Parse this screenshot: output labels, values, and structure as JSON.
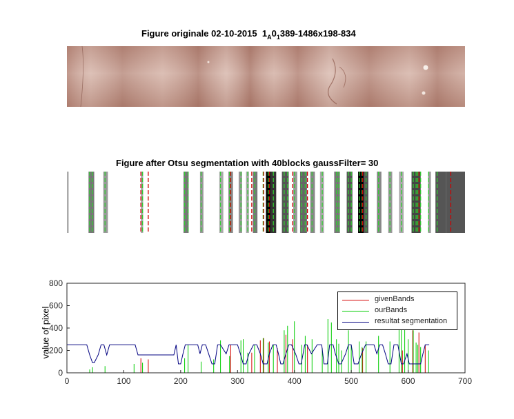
{
  "figure1": {
    "title_main": "Figure originale 02-10-2015",
    "title_sub_parts": [
      "1",
      "A",
      "0",
      "1"
    ],
    "title_tail": "389-1486x198-834",
    "texture_colors": [
      "#a9776b",
      "#d8b7ac",
      "#9a5f52",
      "#e3c8bf"
    ]
  },
  "figure2": {
    "title": "Figure after Otsu segmentation with 40blocks gaussFilter= 30",
    "xlim": [
      0,
      700
    ],
    "gray_regions": [
      {
        "from": 0,
        "to": 3,
        "shade": "#aaaaaa"
      },
      {
        "from": 38,
        "to": 48,
        "shade": "#777777"
      },
      {
        "from": 64,
        "to": 72,
        "shade": "#999999"
      },
      {
        "from": 130,
        "to": 134,
        "shade": "#aaaaaa"
      },
      {
        "from": 205,
        "to": 214,
        "shade": "#777777"
      },
      {
        "from": 234,
        "to": 240,
        "shade": "#999999"
      },
      {
        "from": 268,
        "to": 275,
        "shade": "#aaaaaa"
      },
      {
        "from": 284,
        "to": 292,
        "shade": "#888888"
      },
      {
        "from": 302,
        "to": 308,
        "shade": "#999999"
      },
      {
        "from": 315,
        "to": 320,
        "shade": "#aaaaaa"
      },
      {
        "from": 327,
        "to": 335,
        "shade": "#777777"
      },
      {
        "from": 350,
        "to": 358,
        "shade": "#000000"
      },
      {
        "from": 358,
        "to": 368,
        "shade": "#333333"
      },
      {
        "from": 378,
        "to": 390,
        "shade": "#555555"
      },
      {
        "from": 398,
        "to": 405,
        "shade": "#999999"
      },
      {
        "from": 410,
        "to": 422,
        "shade": "#666666"
      },
      {
        "from": 428,
        "to": 436,
        "shade": "#888888"
      },
      {
        "from": 445,
        "to": 452,
        "shade": "#aaaaaa"
      },
      {
        "from": 470,
        "to": 480,
        "shade": "#777777"
      },
      {
        "from": 492,
        "to": 502,
        "shade": "#555555"
      },
      {
        "from": 512,
        "to": 522,
        "shade": "#000000"
      },
      {
        "from": 522,
        "to": 530,
        "shade": "#555555"
      },
      {
        "from": 545,
        "to": 553,
        "shade": "#888888"
      },
      {
        "from": 565,
        "to": 572,
        "shade": "#999999"
      },
      {
        "from": 584,
        "to": 592,
        "shade": "#aaaaaa"
      },
      {
        "from": 606,
        "to": 622,
        "shade": "#444444"
      },
      {
        "from": 635,
        "to": 640,
        "shade": "#999999"
      },
      {
        "from": 648,
        "to": 667,
        "shade": "#555555"
      },
      {
        "from": 667,
        "to": 700,
        "shade": "#555555"
      }
    ],
    "green_lines": [
      40,
      45,
      67,
      133,
      207,
      213,
      236,
      270,
      286,
      306,
      318,
      330,
      345,
      354,
      363,
      382,
      388,
      400,
      413,
      419,
      431,
      449,
      474,
      478,
      495,
      500,
      514,
      519,
      526,
      548,
      568,
      588,
      609,
      614,
      617,
      622,
      636,
      651
    ],
    "red_lines": [
      130,
      143,
      288,
      325,
      346,
      356,
      397,
      423,
      520,
      619,
      675
    ]
  },
  "chart_data": {
    "type": "line",
    "xlim": [
      0,
      700
    ],
    "ylim": [
      0,
      800
    ],
    "xticks": [
      0,
      100,
      200,
      300,
      400,
      500,
      600,
      700
    ],
    "yticks": [
      0,
      200,
      400,
      600,
      800
    ],
    "xlabel": "",
    "ylabel": "value of pixel",
    "legend_position": "top-right",
    "series": [
      {
        "name": "givenBands",
        "color": "#d40000",
        "x": [
          130,
          143,
          288,
          310,
          325,
          340,
          346,
          356,
          370,
          385,
          397,
          423,
          520,
          590,
          608,
          619,
          630
        ],
        "y": [
          130,
          120,
          250,
          300,
          180,
          290,
          310,
          280,
          220,
          340,
          300,
          250,
          220,
          200,
          380,
          360,
          250
        ]
      },
      {
        "name": "ourBands",
        "color": "#00cc00",
        "x": [
          40,
          45,
          67,
          118,
          133,
          207,
          213,
          236,
          258,
          270,
          286,
          306,
          310,
          318,
          330,
          345,
          354,
          363,
          382,
          388,
          400,
          413,
          419,
          431,
          449,
          459,
          465,
          474,
          478,
          483,
          495,
          500,
          514,
          519,
          526,
          548,
          568,
          584,
          588,
          594,
          600,
          609,
          614,
          617,
          622,
          636
        ],
        "y": [
          30,
          50,
          60,
          80,
          90,
          130,
          250,
          100,
          120,
          290,
          150,
          290,
          300,
          180,
          250,
          310,
          270,
          250,
          380,
          420,
          460,
          250,
          330,
          300,
          220,
          480,
          450,
          300,
          260,
          200,
          380,
          250,
          280,
          230,
          280,
          330,
          280,
          600,
          600,
          480,
          300,
          380,
          270,
          250,
          230,
          200
        ]
      },
      {
        "name": "resultat segmentation",
        "color": "#000080",
        "x": [
          0,
          35,
          40,
          45,
          48,
          55,
          60,
          65,
          70,
          75,
          120,
          125,
          188,
          192,
          196,
          200,
          204,
          208,
          212,
          230,
          234,
          238,
          244,
          255,
          260,
          265,
          270,
          280,
          285,
          290,
          300,
          305,
          310,
          315,
          320,
          328,
          334,
          340,
          345,
          352,
          356,
          362,
          368,
          372,
          376,
          380,
          385,
          390,
          395,
          402,
          408,
          412,
          418,
          422,
          430,
          440,
          448,
          452,
          458,
          462,
          468,
          472,
          478,
          482,
          490,
          495,
          500,
          505,
          512,
          518,
          525,
          530,
          540,
          545,
          550,
          555,
          560,
          565,
          570,
          575,
          582,
          588,
          592,
          598,
          602,
          612,
          618,
          622,
          626,
          630,
          637
        ],
        "y": [
          250,
          250,
          160,
          90,
          90,
          160,
          250,
          250,
          160,
          250,
          250,
          160,
          160,
          250,
          80,
          80,
          170,
          250,
          250,
          250,
          170,
          250,
          250,
          80,
          80,
          250,
          250,
          170,
          250,
          250,
          250,
          170,
          80,
          80,
          170,
          250,
          250,
          170,
          80,
          80,
          170,
          250,
          250,
          170,
          80,
          80,
          170,
          250,
          250,
          170,
          80,
          80,
          250,
          250,
          170,
          250,
          250,
          80,
          80,
          250,
          250,
          170,
          80,
          80,
          170,
          250,
          250,
          80,
          80,
          170,
          250,
          250,
          250,
          170,
          250,
          250,
          170,
          80,
          80,
          250,
          250,
          80,
          80,
          170,
          80,
          80,
          80,
          80,
          170,
          250,
          250
        ]
      }
    ]
  }
}
